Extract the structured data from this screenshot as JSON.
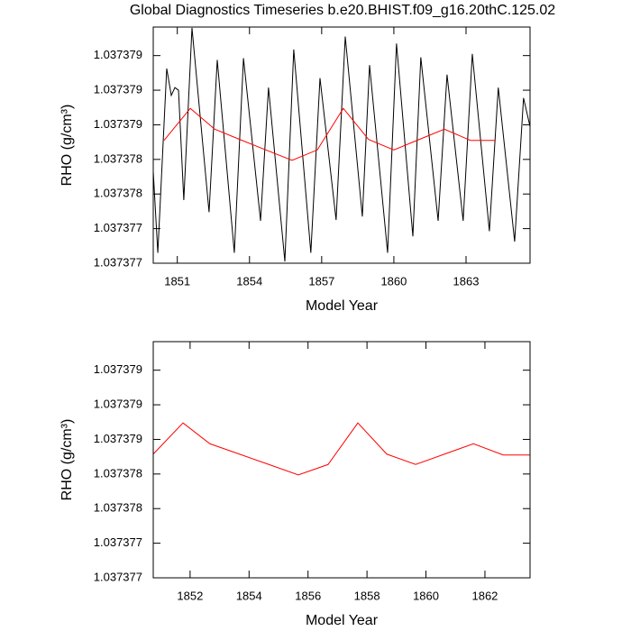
{
  "chart_data": [
    {
      "type": "line",
      "title": "Global Diagnostics Timeseries b.e20.BHIST.f09_g16.20thC.125.02",
      "ylabel": "RHO (g/cm³)",
      "xlabel": "Model Year",
      "xlim": [
        1850,
        1865.66
      ],
      "xticks": [
        1851,
        1854,
        1857,
        1860,
        1863
      ],
      "ylim": [
        1.037377,
        1.03737973
      ],
      "yticks": [
        1.037377,
        {
          "value": 1.0373774,
          "label": "1.037377"
        },
        {
          "value": 1.0373778,
          "label": "1.037378"
        },
        {
          "value": 1.0373782,
          "label": "1.037378"
        },
        {
          "value": 1.0373786,
          "label": "1.037379"
        },
        1.037379,
        {
          "value": 1.0373794,
          "label": "1.037379"
        }
      ],
      "grid": false,
      "series": [
        {
          "color": "#000000",
          "x": [
            1850.0,
            1850.19,
            1850.56,
            1850.75,
            1850.9,
            1851.05,
            1851.27,
            1851.61,
            1852.32,
            1852.66,
            1853.37,
            1853.75,
            1854.46,
            1854.79,
            1855.47,
            1855.84,
            1856.55,
            1856.93,
            1857.6,
            1857.98,
            1858.69,
            1858.99,
            1859.74,
            1860.11,
            1860.79,
            1861.12,
            1861.84,
            1862.21,
            1862.88,
            1863.26,
            1863.97,
            1864.34,
            1865.02,
            1865.39,
            1865.66
          ],
          "values": [
            1.03737806,
            1.03737712,
            1.03737925,
            1.03737894,
            1.03737903,
            1.037379,
            1.03737773,
            1.03737972,
            1.03737759,
            1.03737935,
            1.03737712,
            1.03737937,
            1.03737749,
            1.03737903,
            1.03737702,
            1.03737947,
            1.03737712,
            1.03737914,
            1.0373775,
            1.03737962,
            1.03737754,
            1.03737929,
            1.03737712,
            1.03737954,
            1.03737731,
            1.03737938,
            1.03737749,
            1.03737918,
            1.03737749,
            1.03737942,
            1.03737737,
            1.03737903,
            1.03737725,
            1.03737891,
            1.03737858
          ]
        },
        {
          "color": "#ff0000",
          "x": [
            1850.45,
            1851.54,
            1852.55,
            1853.6,
            1854.68,
            1855.77,
            1856.82,
            1857.9,
            1858.95,
            1860.0,
            1861.05,
            1862.1,
            1863.18,
            1864.23
          ],
          "values": [
            1.03737842,
            1.03737879,
            1.03737855,
            1.03737843,
            1.03737831,
            1.03737819,
            1.03737831,
            1.03737879,
            1.03737843,
            1.03737831,
            1.03737843,
            1.03737855,
            1.03737842,
            1.03737842
          ]
        }
      ]
    },
    {
      "type": "line",
      "ylabel": "RHO (g/cm³)",
      "xlabel": "Model Year",
      "xlim": [
        1850.75,
        1863.53
      ],
      "xticks": [
        1852,
        1854,
        1856,
        1858,
        1860,
        1862
      ],
      "ylim": [
        1.037377,
        1.03737973
      ],
      "yticks": [
        1.037377,
        {
          "value": 1.0373774,
          "label": "1.037377"
        },
        {
          "value": 1.0373778,
          "label": "1.037378"
        },
        {
          "value": 1.0373782,
          "label": "1.037378"
        },
        {
          "value": 1.0373786,
          "label": "1.037379"
        },
        1.037379,
        {
          "value": 1.0373794,
          "label": "1.037379"
        }
      ],
      "grid": false,
      "series": [
        {
          "color": "#ff0000",
          "x": [
            1850.75,
            1851.76,
            1852.67,
            1853.67,
            1854.67,
            1855.67,
            1856.68,
            1857.69,
            1858.67,
            1859.65,
            1860.63,
            1861.61,
            1862.62,
            1863.53
          ],
          "values": [
            1.03737843,
            1.03737879,
            1.03737855,
            1.03737843,
            1.03737831,
            1.03737819,
            1.03737831,
            1.03737879,
            1.03737843,
            1.03737831,
            1.03737843,
            1.03737855,
            1.03737842,
            1.03737842
          ]
        }
      ]
    }
  ]
}
